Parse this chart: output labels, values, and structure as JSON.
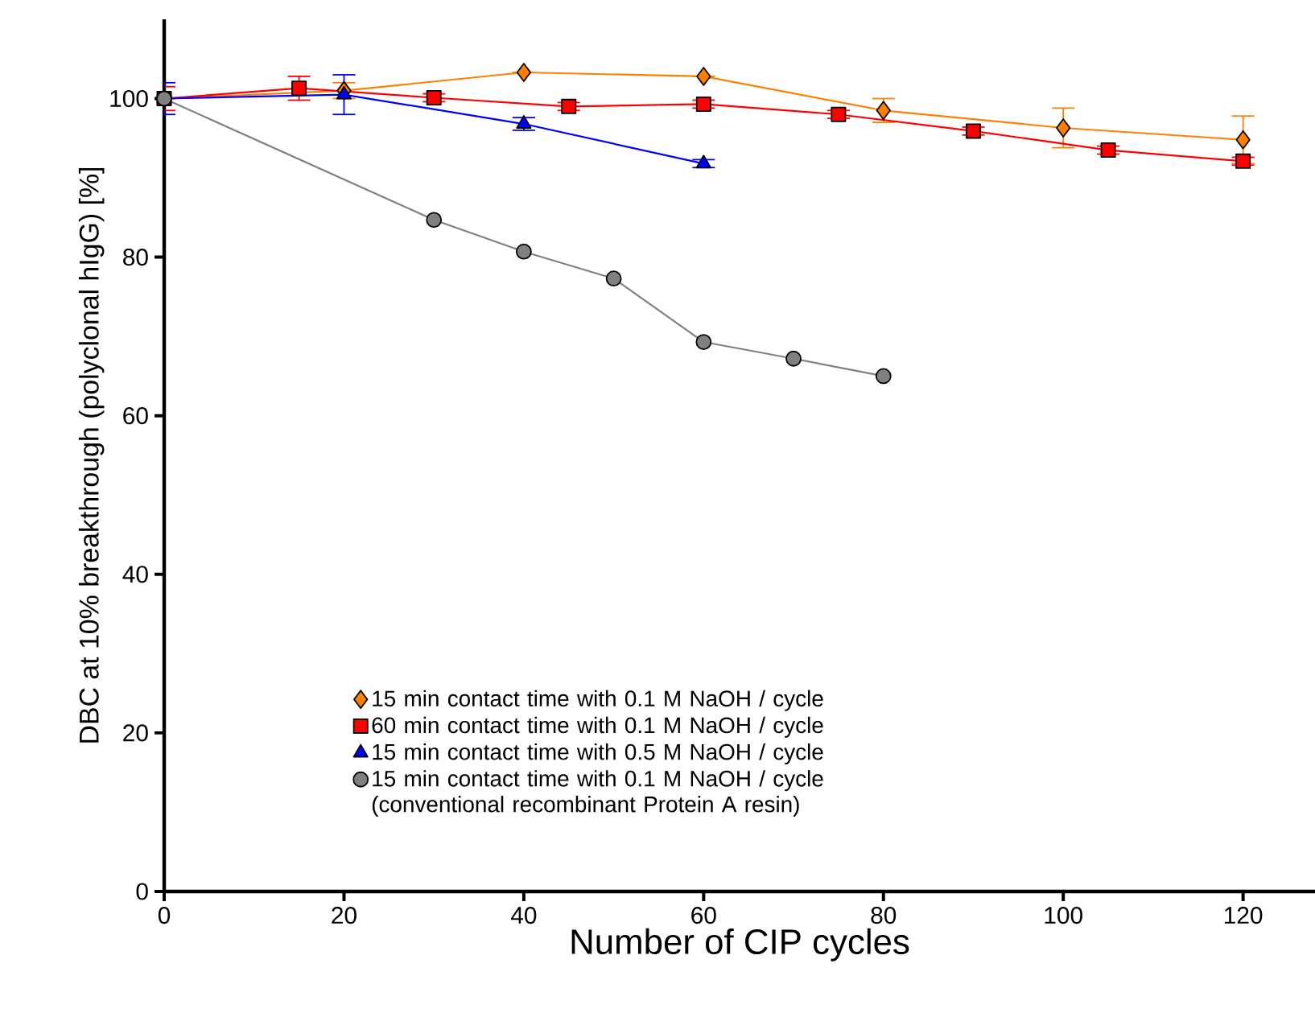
{
  "chart_data": {
    "type": "line",
    "xlabel": "Number of CIP cycles",
    "ylabel": "DBC at 10% breakthrough (polyclonal hIgG) [%]",
    "xlim": [
      0,
      128
    ],
    "ylim": [
      0,
      110
    ],
    "xticks": [
      0,
      20,
      40,
      60,
      80,
      100,
      120
    ],
    "yticks": [
      0,
      20,
      40,
      60,
      80,
      100
    ],
    "grid": false,
    "legend": "bottom",
    "line_style": "solid",
    "series": [
      {
        "name": "15 min contact time with 0.1 M NaOH / cycle",
        "color": "#ff8000",
        "marker": "diamond",
        "x": [
          0,
          20,
          40,
          60,
          80,
          100,
          120
        ],
        "values": [
          100,
          101,
          103.3,
          102.8,
          98.5,
          96.3,
          94.8
        ],
        "errors": [
          null,
          1,
          null,
          null,
          1.5,
          2.5,
          3
        ]
      },
      {
        "name": "60 min contact time with 0.1 M NaOH / cycle",
        "color": "#ff0000",
        "marker": "square",
        "x": [
          0,
          15,
          30,
          45,
          60,
          75,
          90,
          105,
          120
        ],
        "values": [
          100,
          101.3,
          100.1,
          99,
          99.3,
          98,
          95.9,
          93.5,
          92.1
        ],
        "errors": [
          1.5,
          1.5,
          0.5,
          0.5,
          0.5,
          0.5,
          0.5,
          0.5,
          0.5
        ]
      },
      {
        "name": "15 min contact time with 0.5 M NaOH / cycle",
        "color": "#0000ff",
        "marker": "triangle",
        "x": [
          0,
          20,
          40,
          60
        ],
        "values": [
          100,
          100.5,
          96.8,
          91.8
        ],
        "errors": [
          2,
          2.5,
          0.8,
          0.5
        ]
      },
      {
        "name": "15 min contact time with 0.1 M NaOH / cycle (conventional recombinant Protein A resin)",
        "color": "#808080",
        "marker": "circle",
        "x": [
          0,
          30,
          40,
          50,
          60,
          70,
          80
        ],
        "values": [
          100,
          84.7,
          80.7,
          77.3,
          69.3,
          67.2,
          65
        ]
      }
    ]
  }
}
